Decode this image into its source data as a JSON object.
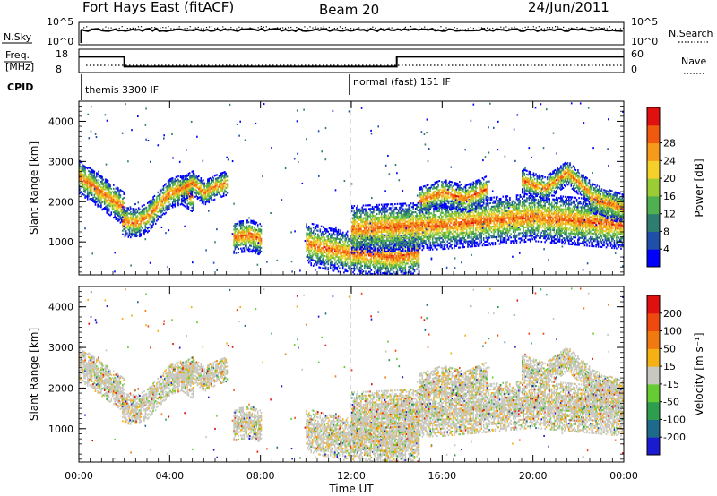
{
  "header": {
    "station": "Fort Hays East (fitACF)",
    "beam": "Beam 20",
    "date": "24/Jun/2011"
  },
  "summary_panels": {
    "nsky_label": "N.Sky",
    "nsearch_label": "N.Search",
    "nsky_ticks": [
      "10^5",
      "10^0"
    ],
    "nsearch_ticks": [
      "10^5",
      "10^0"
    ],
    "freq_label_line1": "Freq.",
    "freq_label_line2": "[MHz]",
    "freq_ticks": [
      "18",
      "8"
    ],
    "nave_label": "Nave",
    "nave_ticks": [
      "60",
      "0"
    ],
    "cpid_label": "CPID",
    "cpid_modes": [
      "themis 3300 IF",
      "normal (fast) 151 IF"
    ]
  },
  "axes": {
    "x_label": "Time UT",
    "x_ticks": [
      "00:00",
      "04:00",
      "08:00",
      "12:00",
      "16:00",
      "20:00",
      "00:00"
    ],
    "y_label": "Slant Range [km]",
    "y_ticks": [
      "1000",
      "2000",
      "3000",
      "4000"
    ]
  },
  "power_colorbar": {
    "label": "Power [dB]",
    "ticks": [
      "4",
      "8",
      "12",
      "16",
      "20",
      "24",
      "28"
    ],
    "colors": [
      "#0000ff",
      "#1f4fa8",
      "#2e7d6e",
      "#4fb04f",
      "#9ccc34",
      "#f5d02a",
      "#f59a1a",
      "#f05a10",
      "#e01010"
    ]
  },
  "velocity_colorbar": {
    "label": "Velocity [m s⁻¹]",
    "ticks": [
      "200",
      "100",
      "50",
      "15",
      "-15",
      "-50",
      "-100",
      "-200"
    ],
    "colors": [
      "#1a1ad0",
      "#1e6a8a",
      "#2e9e4e",
      "#66cc33",
      "#c8c8c0",
      "#f5b014",
      "#f07a10",
      "#ee4a10",
      "#e01010"
    ]
  },
  "chart_data": {
    "type": "heatmap",
    "x_range_hours": [
      0,
      24
    ],
    "y_range_km": [
      180,
      4500
    ],
    "mode_change_hour": 12,
    "freq_mhz": {
      "times_hours": [
        0,
        2,
        2,
        14,
        14,
        24
      ],
      "values": [
        16,
        16,
        11,
        11,
        16,
        16
      ]
    },
    "power_echo_bands": [
      {
        "t": [
          0.0,
          0.5,
          1.0,
          1.5,
          2.0
        ],
        "center_km": [
          2600,
          2400,
          2200,
          2000,
          1800
        ],
        "width_km": 420
      },
      {
        "t": [
          1.9,
          2.5,
          3.0,
          3.5,
          4.0,
          4.5,
          5.0
        ],
        "center_km": [
          1500,
          1450,
          1600,
          1900,
          2200,
          2300,
          2100
        ],
        "width_km": 380
      },
      {
        "t": [
          4.5,
          5.0,
          5.5,
          6.0,
          6.5
        ],
        "center_km": [
          2300,
          2450,
          2200,
          2350,
          2450
        ],
        "width_km": 300
      },
      {
        "t": [
          6.8,
          7.5,
          8.0
        ],
        "center_km": [
          1100,
          1150,
          1050
        ],
        "width_km": 400
      },
      {
        "t": [
          10.0,
          11.0,
          12.0,
          13.0,
          14.0,
          15.0
        ],
        "center_km": [
          950,
          800,
          700,
          650,
          600,
          700
        ],
        "width_km": 520
      },
      {
        "t": [
          12.0,
          14.0,
          16.0,
          18.0,
          20.0,
          22.0,
          24.0
        ],
        "center_km": [
          1300,
          1350,
          1400,
          1500,
          1600,
          1500,
          1400
        ],
        "width_km": 600
      },
      {
        "t": [
          15.0,
          16.0,
          17.0,
          18.0
        ],
        "center_km": [
          2000,
          2200,
          2050,
          2300
        ],
        "width_km": 350
      },
      {
        "t": [
          19.5,
          20.5,
          21.5,
          22.5
        ],
        "center_km": [
          2500,
          2300,
          2700,
          2200
        ],
        "width_km": 300
      },
      {
        "t": [
          22.5,
          23.2,
          24.0
        ],
        "center_km": [
          2100,
          1950,
          1800
        ],
        "width_km": 380
      }
    ]
  }
}
